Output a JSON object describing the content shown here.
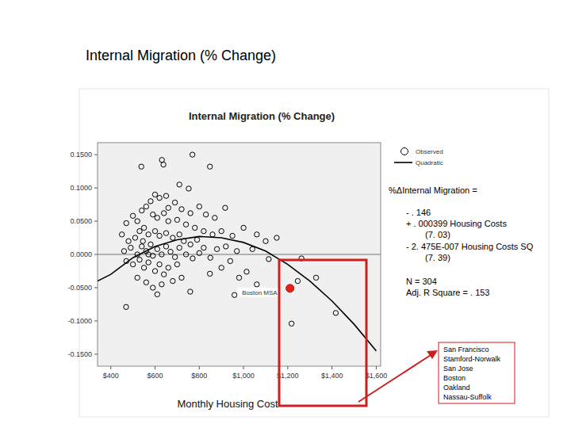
{
  "chart_data": {
    "type": "scatter",
    "slide_title": "Internal Migration (% Change)",
    "title": "Internal Migration (% Change)",
    "x_label": "Monthly Housing Cost",
    "xlim": [
      340,
      1620
    ],
    "ylim": [
      -0.168,
      0.168
    ],
    "xticks": [
      {
        "value": 400,
        "label": "$400"
      },
      {
        "value": 600,
        "label": "$600"
      },
      {
        "value": 800,
        "label": "$800"
      },
      {
        "value": 1000,
        "label": "$1,000"
      },
      {
        "value": 1200,
        "label": "$1,200"
      },
      {
        "value": 1400,
        "label": "$1,400"
      },
      {
        "value": 1600,
        "label": "$1,600"
      }
    ],
    "yticks": [
      {
        "value": 0.15,
        "label": "0.1500"
      },
      {
        "value": 0.1,
        "label": "0.1000"
      },
      {
        "value": 0.05,
        "label": "0.0500"
      },
      {
        "value": 0,
        "label": "0.0000"
      },
      {
        "value": -0.05,
        "label": "-0.0500"
      },
      {
        "value": -0.1,
        "label": "-0.1000"
      },
      {
        "value": -0.15,
        "label": "-0.1500"
      }
    ],
    "grid": false,
    "reference_line": {
      "y": 0
    },
    "legend": "top-right",
    "series": [
      {
        "name": "Observed",
        "type": "scatter",
        "marker": "circle",
        "color": "#000000",
        "x": [
          769,
          631,
          638,
          538,
          848,
          710,
          752,
          917,
          600,
          620,
          580,
          650,
          560,
          540,
          690,
          720,
          760,
          800,
          830,
          870,
          500,
          470,
          520,
          590,
          610,
          640,
          660,
          700,
          740,
          780,
          820,
          860,
          900,
          950,
          1000,
          1060,
          1100,
          1150,
          450,
          480,
          510,
          530,
          550,
          570,
          600,
          620,
          650,
          680,
          710,
          730,
          760,
          790,
          820,
          880,
          920,
          970,
          1040,
          460,
          490,
          520,
          540,
          560,
          580,
          590,
          610,
          630,
          650,
          670,
          690,
          710,
          740,
          770,
          800,
          850,
          940,
          1014,
          1114,
          1262,
          470,
          500,
          530,
          550,
          570,
          600,
          620,
          640,
          660,
          700,
          720,
          848,
          520,
          560,
          590,
          630,
          680,
          759,
          959,
          469,
          1245,
          1328,
          1217,
          1417,
          900,
          980,
          1060,
          610,
          570,
          545,
          660
        ],
        "values": [
          0.15,
          0.142,
          0.135,
          0.132,
          0.132,
          0.105,
          0.099,
          0.07,
          0.09,
          0.085,
          0.08,
          0.088,
          0.072,
          0.066,
          0.078,
          0.068,
          0.062,
          0.072,
          0.06,
          0.055,
          0.058,
          0.047,
          0.05,
          0.06,
          0.055,
          0.062,
          0.05,
          0.052,
          0.045,
          0.04,
          0.035,
          0.03,
          0.035,
          0.028,
          0.04,
          0.03,
          0.02,
          0.025,
          0.03,
          0.02,
          0.025,
          0.035,
          0.04,
          0.03,
          0.035,
          0.028,
          0.032,
          0.025,
          0.03,
          0.02,
          0.015,
          0.022,
          0.01,
          0.008,
          0.012,
          0.005,
          0.008,
          0.005,
          0.01,
          0.0,
          0.012,
          0.005,
          0.015,
          -0.002,
          0.008,
          0.0,
          0.012,
          0.004,
          -0.004,
          0.01,
          0.0,
          -0.006,
          0.002,
          -0.005,
          -0.01,
          -0.026,
          -0.007,
          -0.006,
          -0.01,
          -0.015,
          -0.008,
          -0.02,
          -0.012,
          -0.025,
          -0.015,
          -0.03,
          -0.02,
          -0.015,
          -0.035,
          -0.029,
          -0.035,
          -0.042,
          -0.05,
          -0.045,
          -0.04,
          -0.056,
          -0.061,
          -0.079,
          -0.04,
          -0.035,
          -0.104,
          -0.088,
          -0.02,
          -0.035,
          -0.045,
          -0.06,
          0.0,
          0.02,
          0.07
        ]
      },
      {
        "name": "Quadratic",
        "type": "line",
        "line_style": "solid",
        "color": "#000000",
        "x": [
          340,
          400,
          500,
          600,
          700,
          800,
          900,
          1000,
          1100,
          1200,
          1300,
          1400,
          1500,
          1600
        ],
        "values": [
          -0.04,
          -0.03,
          -0.005,
          0.012,
          0.022,
          0.027,
          0.025,
          0.018,
          0.005,
          -0.015,
          -0.04,
          -0.07,
          -0.105,
          -0.145
        ]
      },
      {
        "name": "Boston MSA",
        "type": "scatter",
        "marker": "filled_circle",
        "color": "#e8201a",
        "x": [
          1210
        ],
        "values": [
          -0.051
        ]
      }
    ],
    "equation": [
      "%ΔInternal Migration =",
      "- . 146",
      "+ . 000399 Housing Costs",
      "(7. 03)",
      "- 2. 475E-007 Housing Costs SQ",
      "(7. 39)"
    ],
    "stats": [
      "N = 304",
      "Adj. R Square = . 153"
    ],
    "highlight_list": [
      "San Francisco",
      "Stamford-Norwalk",
      "San Jose",
      "Boston",
      "Oakland",
      "Nassau-Suffolk"
    ]
  }
}
